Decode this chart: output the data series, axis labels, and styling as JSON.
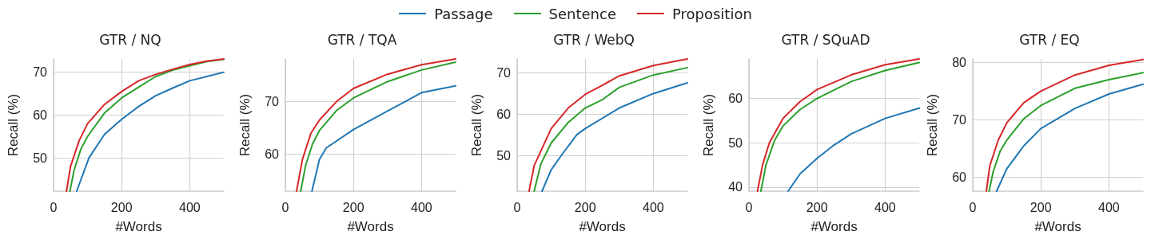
{
  "chart_data": [
    {
      "type": "line",
      "title": "GTR / NQ",
      "xlabel": "#Words",
      "ylabel": "Recall (%)",
      "xlim": [
        0,
        500
      ],
      "xticks": [
        0,
        200,
        400
      ],
      "ylim": [
        42.2,
        73.1
      ],
      "yticks": [
        50,
        60,
        70
      ],
      "grid": true,
      "legend": "top",
      "marker": "none",
      "line_style": "solid",
      "series": [
        {
          "name": "Passage",
          "color": "#1f77b4",
          "x": [
            68,
            104,
            150,
            200,
            250,
            300,
            350,
            400,
            450,
            500
          ],
          "values": [
            42.2,
            50,
            55.5,
            59,
            62,
            64.5,
            66.3,
            68,
            69,
            70
          ]
        },
        {
          "name": "Sentence",
          "color": "#2ca02c",
          "x": [
            48,
            60,
            80,
            100,
            150,
            200,
            250,
            300,
            350,
            400,
            450,
            500
          ],
          "values": [
            42.2,
            47,
            52,
            55,
            60.5,
            64,
            66.5,
            69,
            70.5,
            71.5,
            72.5,
            73
          ]
        },
        {
          "name": "Proposition",
          "color": "#d62728",
          "x": [
            38,
            50,
            75,
            100,
            150,
            200,
            250,
            300,
            350,
            400,
            450,
            500
          ],
          "values": [
            42.2,
            48,
            54,
            58,
            62.5,
            65.5,
            68,
            69.5,
            70.7,
            71.8,
            72.6,
            73.1
          ]
        }
      ]
    },
    {
      "type": "line",
      "title": "GTR / TQA",
      "xlabel": "#Words",
      "ylabel": "Recall (%)",
      "xlim": [
        0,
        500
      ],
      "xticks": [
        0,
        200,
        400
      ],
      "ylim": [
        53,
        78.1
      ],
      "yticks": [
        60,
        70
      ],
      "grid": true,
      "marker": "none",
      "line_style": "solid",
      "series": [
        {
          "color": "#1f77b4",
          "x": [
            78,
            100,
            120,
            200,
            300,
            400,
            500
          ],
          "values": [
            53,
            59,
            61.2,
            64.7,
            68.2,
            71.7,
            73
          ]
        },
        {
          "color": "#2ca02c",
          "x": [
            45,
            60,
            80,
            100,
            150,
            200,
            300,
            400,
            500
          ],
          "values": [
            53,
            58,
            62,
            64.5,
            68.3,
            70.7,
            73.8,
            76,
            77.5
          ]
        },
        {
          "color": "#d62728",
          "x": [
            33,
            50,
            75,
            100,
            150,
            200,
            300,
            400,
            500
          ],
          "values": [
            53,
            59,
            64,
            66.5,
            70,
            72.5,
            75.2,
            77,
            78.1
          ]
        }
      ]
    },
    {
      "type": "line",
      "title": "GTR / WebQ",
      "xlabel": "#Words",
      "ylabel": "Recall (%)",
      "xlim": [
        0,
        500
      ],
      "xticks": [
        0,
        200,
        400
      ],
      "ylim": [
        41.3,
        73.4
      ],
      "yticks": [
        50,
        60,
        70
      ],
      "grid": true,
      "marker": "none",
      "line_style": "solid",
      "series": [
        {
          "color": "#1f77b4",
          "x": [
            73,
            100,
            130,
            175,
            200,
            300,
            400,
            500
          ],
          "values": [
            41.3,
            46.5,
            50,
            55,
            56.5,
            61.5,
            65,
            67.6
          ]
        },
        {
          "color": "#2ca02c",
          "x": [
            50,
            70,
            100,
            150,
            200,
            250,
            300,
            400,
            500
          ],
          "values": [
            41.3,
            48,
            53,
            58,
            61.5,
            63.5,
            66.5,
            69.5,
            71.3
          ]
        },
        {
          "color": "#d62728",
          "x": [
            35,
            50,
            75,
            100,
            150,
            200,
            250,
            300,
            400,
            500
          ],
          "values": [
            41.3,
            47.5,
            52,
            56.5,
            61.5,
            64.8,
            67,
            69.3,
            71.8,
            73.4
          ]
        }
      ]
    },
    {
      "type": "line",
      "title": "GTR / SQuAD",
      "xlabel": "#Words",
      "ylabel": "Recall (%)",
      "xlim": [
        0,
        500
      ],
      "xticks": [
        0,
        200,
        400
      ],
      "ylim": [
        39.1,
        68.9
      ],
      "yticks": [
        40,
        50,
        60
      ],
      "grid": true,
      "marker": "none",
      "line_style": "solid",
      "series": [
        {
          "color": "#1f77b4",
          "x": [
            115,
            150,
            200,
            250,
            300,
            400,
            500
          ],
          "values": [
            39.1,
            43,
            46.5,
            49.5,
            52,
            55.5,
            57.8
          ]
        },
        {
          "color": "#2ca02c",
          "x": [
            35,
            50,
            75,
            100,
            150,
            200,
            300,
            400,
            500
          ],
          "values": [
            39.1,
            45,
            50.5,
            53.8,
            57.5,
            60,
            63.8,
            66.3,
            68.1
          ]
        },
        {
          "color": "#d62728",
          "x": [
            25,
            40,
            60,
            100,
            150,
            200,
            300,
            400,
            500
          ],
          "values": [
            39.1,
            45,
            50,
            55.5,
            59.3,
            62,
            65.3,
            67.6,
            68.9
          ]
        }
      ]
    },
    {
      "type": "line",
      "title": "GTR / EQ",
      "xlabel": "#Words",
      "ylabel": "Recall (%)",
      "xlim": [
        0,
        500
      ],
      "xticks": [
        0,
        200,
        400
      ],
      "ylim": [
        57.6,
        80.6
      ],
      "yticks": [
        60,
        70,
        80
      ],
      "grid": true,
      "marker": "none",
      "line_style": "solid",
      "series": [
        {
          "color": "#1f77b4",
          "x": [
            70,
            100,
            150,
            200,
            300,
            400,
            500
          ],
          "values": [
            57.6,
            61.5,
            65.5,
            68.5,
            72,
            74.5,
            76.2
          ]
        },
        {
          "color": "#2ca02c",
          "x": [
            48,
            60,
            80,
            100,
            150,
            200,
            300,
            400,
            500
          ],
          "values": [
            57.6,
            61,
            64.5,
            66.5,
            70.2,
            72.5,
            75.5,
            77,
            78.2
          ]
        },
        {
          "color": "#d62728",
          "x": [
            40,
            50,
            75,
            100,
            150,
            200,
            300,
            400,
            500
          ],
          "values": [
            57.6,
            62,
            66.5,
            69.5,
            73,
            75,
            77.8,
            79.5,
            80.5
          ]
        }
      ]
    }
  ]
}
